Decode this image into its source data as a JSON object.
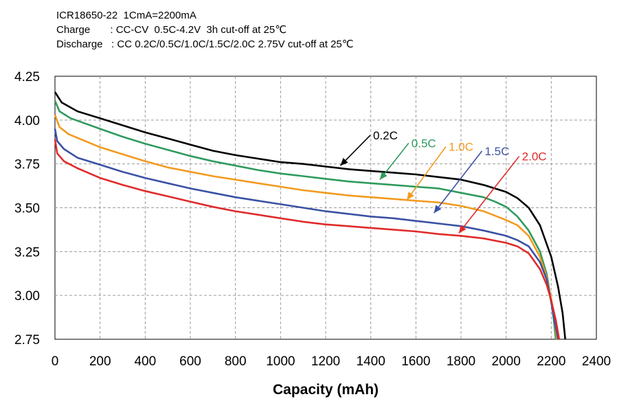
{
  "header": {
    "line1": "ICR18650-22  1CmA=2200mA",
    "line2": "Charge       : CC-CV  0.5C-4.2V  3h cut-off at 25℃",
    "line3": "Discharge   : CC 0.2C/0.5C/1.0C/1.5C/2.0C 2.75V cut-off at 25℃"
  },
  "chart_data": {
    "type": "line",
    "xlabel": "Capacity (mAh)",
    "ylabel": "",
    "xlim": [
      0,
      2400
    ],
    "ylim": [
      2.75,
      4.25
    ],
    "xticks": [
      0,
      200,
      400,
      600,
      800,
      1000,
      1200,
      1400,
      1600,
      1800,
      2000,
      2200,
      2400
    ],
    "xtick_labels": [
      "0",
      "200",
      "400",
      "600",
      "800",
      "1000",
      "1200",
      "1400",
      "1600",
      "1800",
      "2000",
      "2200",
      "2400"
    ],
    "yticks": [
      2.75,
      3.0,
      3.25,
      3.5,
      3.75,
      4.0,
      4.25
    ],
    "ytick_labels": [
      "2.75",
      "3.00",
      "3.25",
      "3.50",
      "3.75",
      "4.00",
      "4.25"
    ],
    "grid": "dashed",
    "series": [
      {
        "name": "0.2C",
        "color": "#000000",
        "points": [
          [
            0,
            4.16
          ],
          [
            30,
            4.1
          ],
          [
            100,
            4.05
          ],
          [
            200,
            4.01
          ],
          [
            300,
            3.97
          ],
          [
            400,
            3.93
          ],
          [
            500,
            3.895
          ],
          [
            600,
            3.86
          ],
          [
            700,
            3.825
          ],
          [
            800,
            3.8
          ],
          [
            900,
            3.78
          ],
          [
            1000,
            3.76
          ],
          [
            1100,
            3.75
          ],
          [
            1200,
            3.735
          ],
          [
            1300,
            3.72
          ],
          [
            1400,
            3.71
          ],
          [
            1500,
            3.7
          ],
          [
            1600,
            3.69
          ],
          [
            1700,
            3.675
          ],
          [
            1800,
            3.66
          ],
          [
            1900,
            3.63
          ],
          [
            2000,
            3.59
          ],
          [
            2050,
            3.555
          ],
          [
            2100,
            3.5
          ],
          [
            2150,
            3.4
          ],
          [
            2200,
            3.22
          ],
          [
            2230,
            3.05
          ],
          [
            2250,
            2.9
          ],
          [
            2262,
            2.75
          ]
        ]
      },
      {
        "name": "0.5C",
        "color": "#2e9b5e",
        "points": [
          [
            0,
            4.11
          ],
          [
            20,
            4.05
          ],
          [
            70,
            4.01
          ],
          [
            200,
            3.95
          ],
          [
            300,
            3.905
          ],
          [
            400,
            3.865
          ],
          [
            500,
            3.83
          ],
          [
            600,
            3.795
          ],
          [
            700,
            3.765
          ],
          [
            800,
            3.74
          ],
          [
            900,
            3.715
          ],
          [
            1000,
            3.695
          ],
          [
            1100,
            3.68
          ],
          [
            1200,
            3.665
          ],
          [
            1300,
            3.65
          ],
          [
            1400,
            3.64
          ],
          [
            1500,
            3.63
          ],
          [
            1600,
            3.62
          ],
          [
            1700,
            3.61
          ],
          [
            1800,
            3.585
          ],
          [
            1900,
            3.56
          ],
          [
            1950,
            3.535
          ],
          [
            2000,
            3.505
          ],
          [
            2050,
            3.45
          ],
          [
            2100,
            3.37
          ],
          [
            2150,
            3.25
          ],
          [
            2180,
            3.12
          ],
          [
            2200,
            2.97
          ],
          [
            2212,
            2.85
          ],
          [
            2220,
            2.75
          ]
        ]
      },
      {
        "name": "1.0C",
        "color": "#f29a1f",
        "points": [
          [
            0,
            4.03
          ],
          [
            20,
            3.96
          ],
          [
            60,
            3.92
          ],
          [
            200,
            3.845
          ],
          [
            300,
            3.805
          ],
          [
            400,
            3.765
          ],
          [
            500,
            3.73
          ],
          [
            600,
            3.705
          ],
          [
            700,
            3.68
          ],
          [
            800,
            3.66
          ],
          [
            900,
            3.64
          ],
          [
            1000,
            3.62
          ],
          [
            1100,
            3.6
          ],
          [
            1200,
            3.585
          ],
          [
            1300,
            3.57
          ],
          [
            1400,
            3.56
          ],
          [
            1500,
            3.55
          ],
          [
            1600,
            3.54
          ],
          [
            1700,
            3.53
          ],
          [
            1800,
            3.51
          ],
          [
            1900,
            3.48
          ],
          [
            2000,
            3.43
          ],
          [
            2050,
            3.4
          ],
          [
            2100,
            3.34
          ],
          [
            2150,
            3.22
          ],
          [
            2180,
            3.1
          ],
          [
            2200,
            2.98
          ],
          [
            2215,
            2.85
          ],
          [
            2225,
            2.75
          ]
        ]
      },
      {
        "name": "1.5C",
        "color": "#3a51a3",
        "points": [
          [
            0,
            3.95
          ],
          [
            10,
            3.88
          ],
          [
            40,
            3.835
          ],
          [
            100,
            3.785
          ],
          [
            200,
            3.745
          ],
          [
            300,
            3.705
          ],
          [
            400,
            3.67
          ],
          [
            500,
            3.64
          ],
          [
            600,
            3.61
          ],
          [
            700,
            3.585
          ],
          [
            800,
            3.56
          ],
          [
            900,
            3.54
          ],
          [
            1000,
            3.52
          ],
          [
            1100,
            3.5
          ],
          [
            1200,
            3.48
          ],
          [
            1300,
            3.465
          ],
          [
            1400,
            3.45
          ],
          [
            1500,
            3.44
          ],
          [
            1600,
            3.425
          ],
          [
            1700,
            3.41
          ],
          [
            1800,
            3.395
          ],
          [
            1900,
            3.37
          ],
          [
            2000,
            3.34
          ],
          [
            2050,
            3.315
          ],
          [
            2100,
            3.28
          ],
          [
            2150,
            3.19
          ],
          [
            2180,
            3.09
          ],
          [
            2200,
            2.96
          ],
          [
            2215,
            2.85
          ],
          [
            2230,
            2.75
          ]
        ]
      },
      {
        "name": "2.0C",
        "color": "#e02a2a",
        "points": [
          [
            0,
            3.89
          ],
          [
            10,
            3.81
          ],
          [
            40,
            3.765
          ],
          [
            100,
            3.725
          ],
          [
            200,
            3.67
          ],
          [
            300,
            3.63
          ],
          [
            400,
            3.595
          ],
          [
            500,
            3.565
          ],
          [
            600,
            3.535
          ],
          [
            700,
            3.505
          ],
          [
            800,
            3.48
          ],
          [
            900,
            3.46
          ],
          [
            1000,
            3.44
          ],
          [
            1100,
            3.42
          ],
          [
            1200,
            3.405
          ],
          [
            1300,
            3.395
          ],
          [
            1400,
            3.385
          ],
          [
            1500,
            3.375
          ],
          [
            1600,
            3.365
          ],
          [
            1700,
            3.35
          ],
          [
            1800,
            3.34
          ],
          [
            1900,
            3.325
          ],
          [
            2000,
            3.3
          ],
          [
            2050,
            3.28
          ],
          [
            2100,
            3.24
          ],
          [
            2150,
            3.15
          ],
          [
            2180,
            3.06
          ],
          [
            2200,
            2.97
          ],
          [
            2220,
            2.86
          ],
          [
            2235,
            2.75
          ]
        ]
      }
    ],
    "annotations": [
      {
        "series": "0.2C",
        "text": "0.2C",
        "text_at": [
          1410,
          3.89
        ],
        "arrow_to": [
          1265,
          3.74
        ]
      },
      {
        "series": "0.5C",
        "text": "0.5C",
        "text_at": [
          1580,
          3.845
        ],
        "arrow_to": [
          1440,
          3.66
        ]
      },
      {
        "series": "1.0C",
        "text": "1.0C",
        "text_at": [
          1745,
          3.825
        ],
        "arrow_to": [
          1560,
          3.545
        ]
      },
      {
        "series": "1.5C",
        "text": "1.5C",
        "text_at": [
          1905,
          3.8
        ],
        "arrow_to": [
          1680,
          3.47
        ]
      },
      {
        "series": "2.0C",
        "text": "2.0C",
        "text_at": [
          2070,
          3.77
        ],
        "arrow_to": [
          1790,
          3.355
        ]
      }
    ]
  }
}
